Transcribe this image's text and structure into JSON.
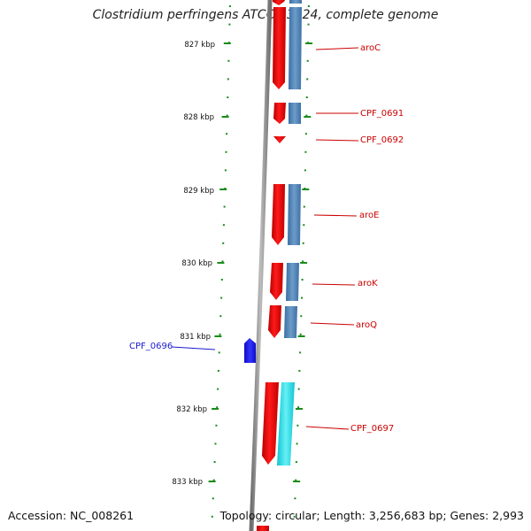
{
  "title": "Clostridium perfringens ATCC 13124, complete genome",
  "footer": {
    "accession": "Accession: NC_008261",
    "summary": "Topology: circular; Length: 3,256,683 bp; Genes: 2,993"
  },
  "colors": {
    "backbone": "#8c8c8c",
    "tick": "#1a8c1a",
    "forward_gene": "#ee0000",
    "reverse_cds": "#4a82b8",
    "highlight_cds": "#19d9e6",
    "minus_gene": "#1a1ad9",
    "label_red": "#cc0000",
    "label_blue": "#1a1acc"
  },
  "ticks": [
    {
      "label": "827 kbp"
    },
    {
      "label": "828 kbp"
    },
    {
      "label": "829 kbp"
    },
    {
      "label": "830 kbp"
    },
    {
      "label": "831 kbp"
    },
    {
      "label": "832 kbp"
    },
    {
      "label": "833 kbp"
    }
  ],
  "genes": [
    {
      "name": "aroC"
    },
    {
      "name": "CPF_0691"
    },
    {
      "name": "CPF_0692"
    },
    {
      "name": "aroE"
    },
    {
      "name": "aroK"
    },
    {
      "name": "aroQ"
    },
    {
      "name": "CPF_0696"
    },
    {
      "name": "CPF_0697"
    }
  ]
}
